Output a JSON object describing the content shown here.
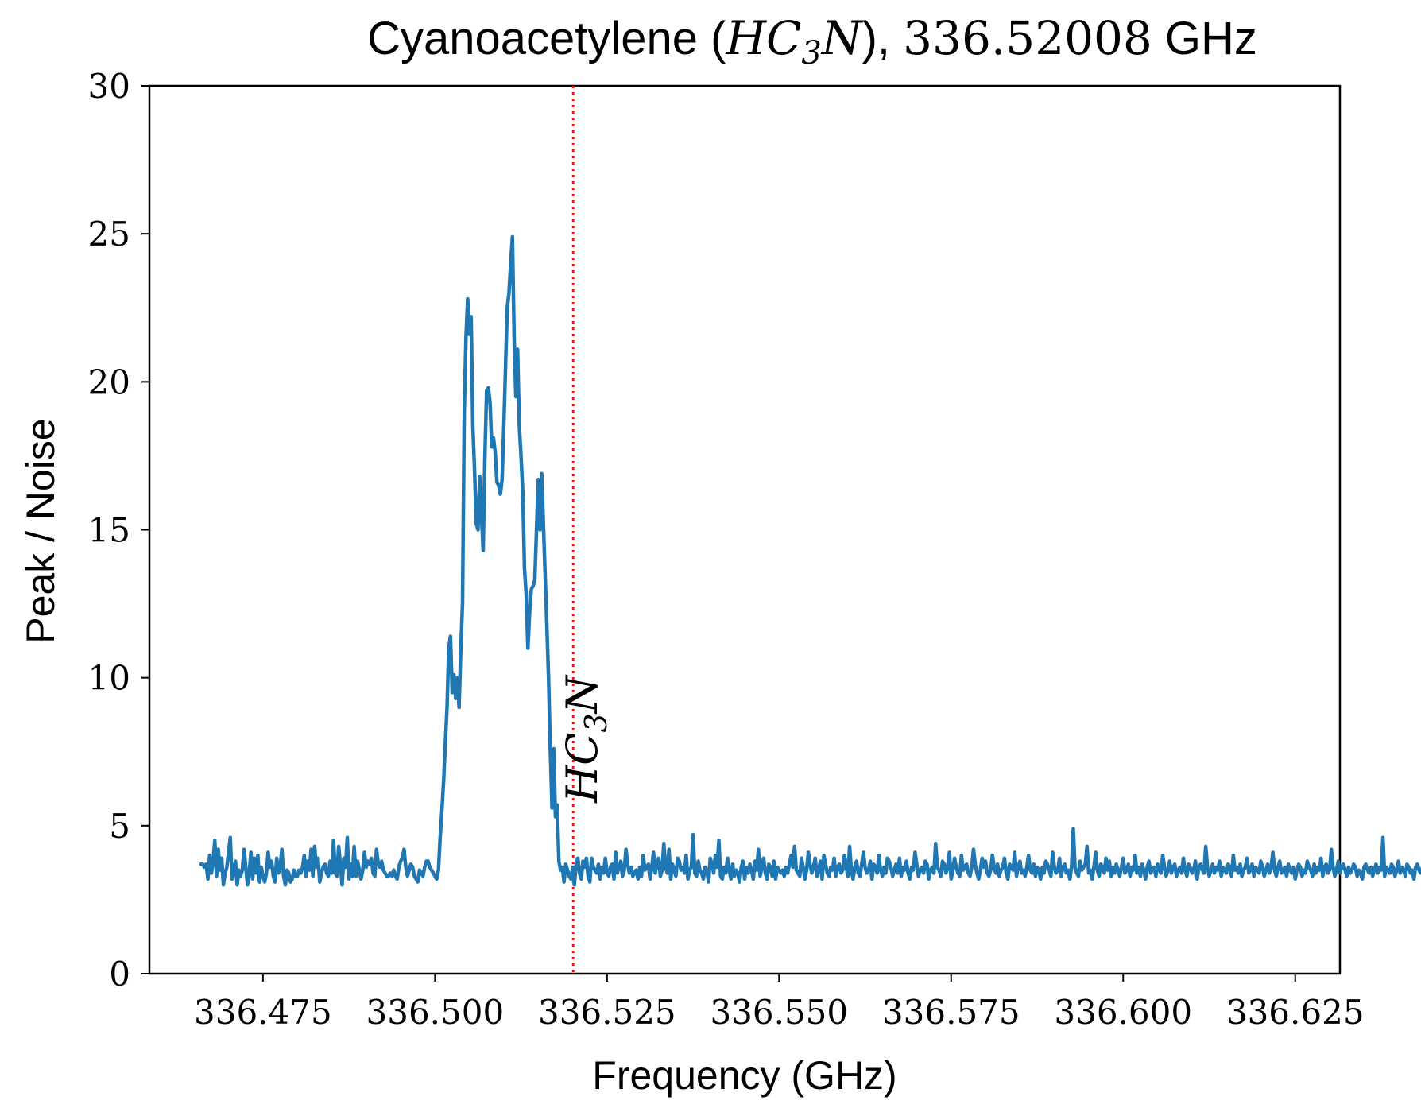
{
  "chart_data": {
    "type": "line",
    "title": {
      "prefix": "Cyanoacetylene (",
      "molecule_main_1": "HC",
      "molecule_sub": "3",
      "molecule_main_2": "N",
      "middle": "), ",
      "frequency": "336.52008",
      "suffix": " GHz"
    },
    "xlabel": "Frequency (GHz)",
    "ylabel": "Peak / Noise",
    "xlim": [
      336.4585,
      336.6315
    ],
    "ylim": [
      0,
      30
    ],
    "x_ticks": [
      336.475,
      336.5,
      336.525,
      336.55,
      336.575,
      336.6,
      336.625
    ],
    "x_tick_labels": [
      "336.475",
      "336.500",
      "336.525",
      "336.550",
      "336.575",
      "336.600",
      "336.625"
    ],
    "y_ticks": [
      0,
      5,
      10,
      15,
      20,
      25,
      30
    ],
    "y_tick_labels": [
      "0",
      "5",
      "10",
      "15",
      "20",
      "25",
      "30"
    ],
    "grid": false,
    "marker_line": {
      "x": 336.52008,
      "style": "dotted",
      "color": "#e8161b",
      "label_main_1": "HC",
      "label_sub": "3",
      "label_main_2": "N"
    },
    "series": [
      {
        "color": "#1f77b4",
        "x_start": 336.466,
        "x_step": 0.00025,
        "values": [
          3.7,
          3.7,
          3.6,
          3.7,
          3.2,
          4.0,
          3.4,
          3.8,
          4.5,
          3.3,
          4.2,
          3.5,
          3.9,
          3.0,
          3.4,
          3.6,
          4.1,
          4.6,
          3.2,
          3.4,
          3.8,
          3.0,
          3.5,
          3.3,
          3.5,
          4.2,
          3.6,
          3.0,
          3.4,
          4.1,
          3.2,
          3.9,
          3.4,
          4.0,
          3.1,
          3.6,
          3.3,
          3.1,
          3.4,
          4.1,
          3.6,
          3.8,
          3.3,
          3.1,
          3.9,
          3.4,
          3.6,
          4.2,
          3.3,
          3.0,
          3.5,
          3.4,
          3.1,
          3.2,
          3.5,
          3.3,
          3.3,
          3.5,
          3.4,
          3.6,
          4.0,
          3.3,
          3.8,
          3.5,
          4.2,
          3.3,
          4.3,
          3.6,
          3.9,
          3.1,
          3.4,
          3.6,
          3.7,
          3.4,
          3.3,
          3.8,
          3.4,
          4.5,
          3.4,
          3.3,
          4.3,
          3.7,
          3.0,
          3.9,
          3.6,
          4.6,
          3.2,
          3.7,
          3.3,
          4.3,
          3.3,
          3.8,
          3.5,
          3.2,
          3.5,
          4.1,
          3.6,
          3.8,
          3.7,
          3.9,
          3.4,
          3.3,
          4.2,
          3.7,
          3.6,
          3.8,
          3.5,
          3.4,
          3.3,
          3.3,
          3.4,
          3.3,
          3.5,
          3.3,
          3.2,
          3.6,
          3.8,
          3.9,
          4.2,
          3.6,
          3.3,
          3.5,
          3.7,
          3.6,
          3.3,
          3.2,
          3.1,
          3.5,
          3.4,
          3.3,
          3.6,
          3.8,
          3.8,
          3.6,
          3.5,
          3.4,
          3.3,
          3.2,
          3.5,
          4.6,
          5.5,
          6.5,
          7.8,
          9.0,
          11.0,
          11.4,
          9.5,
          10.1,
          9.3,
          10.0,
          9.0,
          11.0,
          12.5,
          19.0,
          21.5,
          22.8,
          21.6,
          22.2,
          18.5,
          17.0,
          15.2,
          15.0,
          16.8,
          15.5,
          14.3,
          17.5,
          19.7,
          19.8,
          19.3,
          17.8,
          18.1,
          17.6,
          16.6,
          16.5,
          16.2,
          16.7,
          18.5,
          20.5,
          22.5,
          23.0,
          24.0,
          24.9,
          21.5,
          19.5,
          21.1,
          18.5,
          17.5,
          16.3,
          13.7,
          12.8,
          11.0,
          12.2,
          13.0,
          13.1,
          13.3,
          15.0,
          16.7,
          15.0,
          16.9,
          15.2,
          13.5,
          11.8,
          10.0,
          7.6,
          5.6,
          7.6,
          5.3,
          5.7,
          3.8,
          3.5,
          3.6,
          3.1,
          3.7,
          3.5,
          3.3,
          3.2,
          3.6,
          3.0,
          3.7,
          3.9,
          3.4,
          3.2,
          3.8,
          3.6,
          3.9,
          3.3,
          3.1,
          3.9,
          3.6,
          3.5,
          3.4,
          3.7,
          3.2,
          3.6,
          3.4,
          3.9,
          3.4,
          3.3,
          3.6,
          3.7,
          3.2,
          4.1,
          3.4,
          3.6,
          3.8,
          3.3,
          3.5,
          4.2,
          3.7,
          3.4,
          3.6,
          3.3,
          3.4,
          3.5,
          3.2,
          3.6,
          3.3,
          4.0,
          3.5,
          3.6,
          3.7,
          3.2,
          3.6,
          4.1,
          3.4,
          3.7,
          3.9,
          3.3,
          3.5,
          4.4,
          3.6,
          3.4,
          4.2,
          3.2,
          3.7,
          3.5,
          3.3,
          3.9,
          3.8,
          3.5,
          3.6,
          3.4,
          4.0,
          3.2,
          3.5,
          3.6,
          4.7,
          3.4,
          3.3,
          3.8,
          3.5,
          3.4,
          3.2,
          3.6,
          3.5,
          3.1,
          3.9,
          3.7,
          3.4,
          4.0,
          3.6,
          4.5,
          3.3,
          3.2,
          3.6,
          3.4,
          3.9,
          3.5,
          3.2,
          3.7,
          3.3,
          3.5,
          3.4,
          3.1,
          3.6,
          3.8,
          3.2,
          3.6,
          3.4,
          3.7,
          3.5,
          3.2,
          3.8,
          3.5,
          4.2,
          3.3,
          3.6,
          3.9,
          3.4,
          3.2,
          3.7,
          3.6,
          3.3,
          3.8,
          3.2,
          3.6,
          3.5,
          3.4,
          3.5,
          3.3,
          3.6,
          3.4,
          3.7,
          4.0,
          3.6,
          4.3,
          3.5,
          3.4,
          3.3,
          3.9,
          3.6,
          3.2,
          3.5,
          4.1,
          3.7,
          3.4,
          3.6,
          3.9,
          3.3,
          3.5,
          3.8,
          3.2,
          4.0,
          3.7,
          3.4,
          3.3,
          3.6,
          3.5,
          3.9,
          3.3,
          3.6,
          3.7,
          3.4,
          3.5,
          4.0,
          3.6,
          3.3,
          4.3,
          3.5,
          3.2,
          3.6,
          3.8,
          3.4,
          3.3,
          3.7,
          4.1,
          3.6,
          3.4,
          3.5,
          3.8,
          3.2,
          3.7,
          3.6,
          3.4,
          4.0,
          3.5,
          3.3,
          3.6,
          3.4,
          3.9,
          3.8,
          3.6,
          3.3,
          3.5,
          3.7,
          3.4,
          3.9,
          3.3,
          3.6,
          3.5,
          3.8,
          3.4,
          3.2,
          3.6,
          3.5,
          4.1,
          3.7,
          3.3,
          3.5,
          3.6,
          3.4,
          3.8,
          3.7,
          3.2,
          3.5,
          3.6,
          3.4,
          4.4,
          3.6,
          3.5,
          3.3,
          3.8,
          3.7,
          3.4,
          3.6,
          4.1,
          3.2,
          3.5,
          3.9,
          3.6,
          3.4,
          3.3,
          4.0,
          3.5,
          3.6,
          3.7,
          3.4,
          3.3,
          3.6,
          4.2,
          3.7,
          3.4,
          3.2,
          3.5,
          3.9,
          3.6,
          3.8,
          3.4,
          3.3,
          3.5,
          4.0,
          3.6,
          3.4,
          3.7,
          3.3,
          3.5,
          3.6,
          3.9,
          3.4,
          3.2,
          3.7,
          3.6,
          3.5,
          4.1,
          3.3,
          3.6,
          3.8,
          3.4,
          3.5,
          3.3,
          3.6,
          4.0,
          3.5,
          3.4,
          3.7,
          3.3,
          3.6,
          3.5,
          3.2,
          3.6,
          3.4,
          3.8,
          3.7,
          3.5,
          3.3,
          4.1,
          3.6,
          3.4,
          3.5,
          3.9,
          3.3,
          3.6,
          3.7,
          3.4,
          3.5,
          3.2,
          3.6,
          4.9,
          3.6,
          3.4,
          3.3,
          3.8,
          3.5,
          3.6,
          3.7,
          4.3,
          3.4,
          3.5,
          3.2,
          3.6,
          4.1,
          3.5,
          3.3,
          3.7,
          3.6,
          3.4,
          3.9,
          3.5,
          3.8,
          3.3,
          3.6,
          3.4,
          3.7,
          3.5,
          3.3,
          3.6,
          3.9,
          3.4,
          3.5,
          3.7,
          3.3,
          3.6,
          3.5,
          4.0,
          3.4,
          3.6,
          3.3,
          3.7,
          3.5,
          3.2,
          3.6,
          3.8,
          3.4,
          3.5,
          3.6,
          3.3,
          3.7,
          3.5,
          3.4,
          4.0,
          3.6,
          3.3,
          3.5,
          3.8,
          3.4,
          3.6,
          3.7,
          3.3,
          3.5,
          3.6,
          3.4,
          3.9,
          3.5,
          3.3,
          3.7,
          3.6,
          3.4,
          3.5,
          3.8,
          3.2,
          3.6,
          3.7,
          3.5,
          3.4,
          4.3,
          3.6,
          3.3,
          3.5,
          3.7,
          3.4,
          3.6,
          3.5,
          3.8,
          3.3,
          3.6,
          3.5,
          3.4,
          3.7,
          3.6,
          3.3,
          4.0,
          3.5,
          3.6,
          3.4,
          3.7,
          3.3,
          3.5,
          3.6,
          3.9,
          3.4,
          3.5,
          3.7,
          3.3,
          3.6,
          3.5,
          3.4,
          3.8,
          3.6,
          3.3,
          3.5,
          3.7,
          3.4,
          3.6,
          4.1,
          3.5,
          3.3,
          3.6,
          3.8,
          3.4,
          3.5,
          3.6,
          3.3,
          3.7,
          3.5,
          3.4,
          3.6,
          3.2,
          3.5,
          3.7,
          3.6,
          3.3,
          3.5,
          3.4,
          3.8,
          3.6,
          3.5,
          3.3,
          3.7,
          3.4,
          3.6,
          3.5,
          3.9,
          3.3,
          3.6,
          3.7,
          3.4,
          3.5,
          4.2,
          3.6,
          3.3,
          3.5,
          3.8,
          3.4,
          3.6,
          3.7,
          3.5,
          3.3,
          3.6,
          3.4,
          3.5,
          3.7,
          3.6,
          3.3,
          3.5,
          3.4,
          3.2,
          3.6,
          3.7,
          3.5,
          3.4,
          3.6,
          3.3,
          3.5,
          3.7,
          3.4,
          3.6,
          3.5,
          4.6,
          3.3,
          3.6,
          3.5,
          3.4,
          3.7,
          3.6,
          3.3,
          3.5,
          3.8,
          3.4,
          3.6,
          3.5,
          3.3,
          3.7,
          3.6,
          3.4,
          3.5,
          3.2,
          3.6,
          3.7,
          3.5,
          3.4,
          3.6,
          3.3,
          3.5,
          3.7,
          3.4,
          3.2,
          3.6,
          3.5,
          3.3,
          3.4,
          3.6,
          3.5,
          3.3,
          3.2,
          3.1,
          3.3,
          3.5,
          3.4,
          3.6,
          3.5,
          4.0,
          3.8,
          3.7,
          3.6,
          4.0,
          4.5,
          4.3,
          4.3
        ]
      }
    ]
  }
}
